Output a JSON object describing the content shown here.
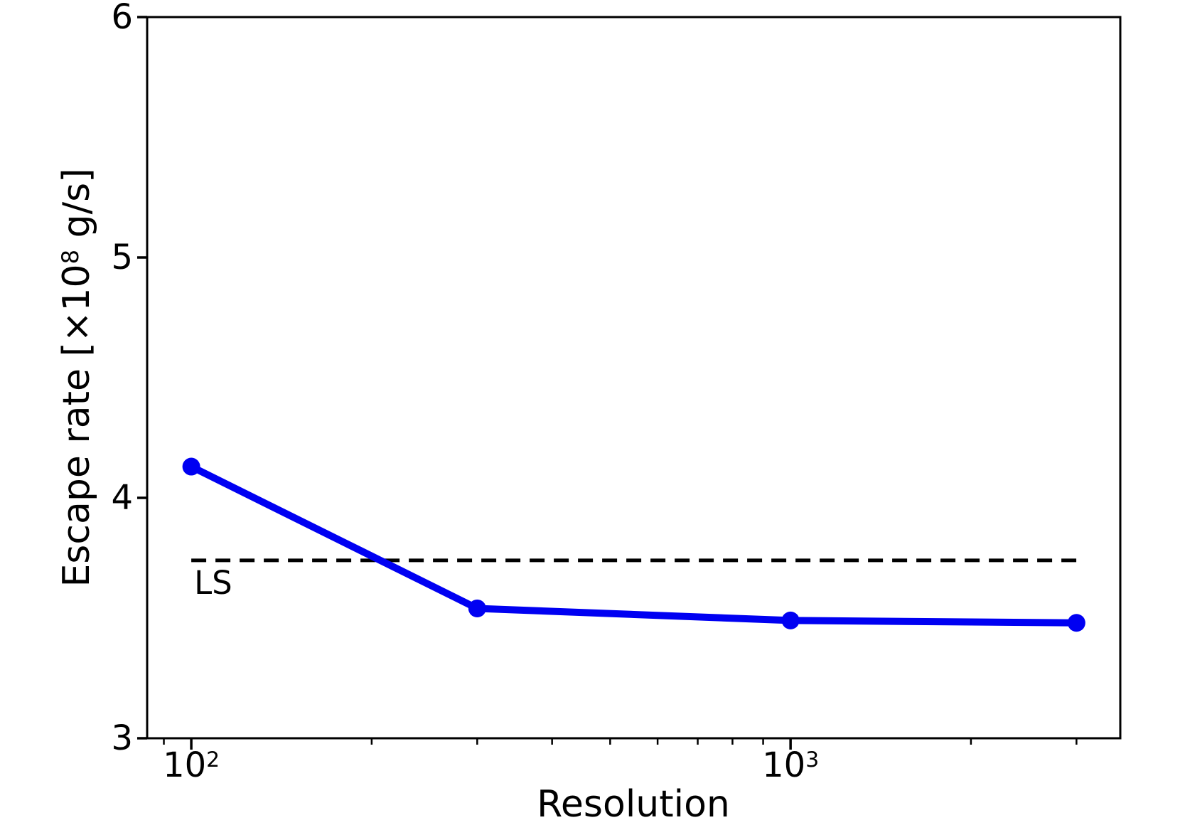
{
  "chart_data": {
    "type": "line",
    "xlabel": "Resolution",
    "ylabel": "Escape rate [×10⁸ g/s]",
    "ylabel_parts": {
      "pre": "Escape rate [×10",
      "sup": "8",
      "post": " g/s]"
    },
    "x_scale": "log",
    "y_scale": "linear",
    "xlim": [
      84.4,
      3550
    ],
    "ylim": [
      3,
      6
    ],
    "grid": false,
    "legend": "none",
    "series": [
      {
        "name": "escape-rate",
        "x": [
          100,
          300,
          1000,
          3000
        ],
        "y": [
          4.13,
          3.54,
          3.49,
          3.48
        ],
        "color": "#0000F2",
        "marker": "circle",
        "line_style": "solid"
      }
    ],
    "reference_line": {
      "y": 3.74,
      "x_start": 100,
      "x_end": 3000,
      "style": "dashed",
      "color": "#000000"
    },
    "annotation": {
      "text": "LS",
      "x": 100,
      "y": 3.645
    },
    "xticks_major": [
      {
        "value": 100,
        "base": "10",
        "exp": "2"
      },
      {
        "value": 1000,
        "base": "10",
        "exp": "3"
      }
    ],
    "xticks_minor": [
      90,
      200,
      300,
      400,
      500,
      600,
      700,
      800,
      900,
      2000,
      3000
    ],
    "yticks": [
      {
        "value": 3,
        "label": "3"
      },
      {
        "value": 4,
        "label": "4"
      },
      {
        "value": 5,
        "label": "5"
      },
      {
        "value": 6,
        "label": "6"
      }
    ]
  }
}
